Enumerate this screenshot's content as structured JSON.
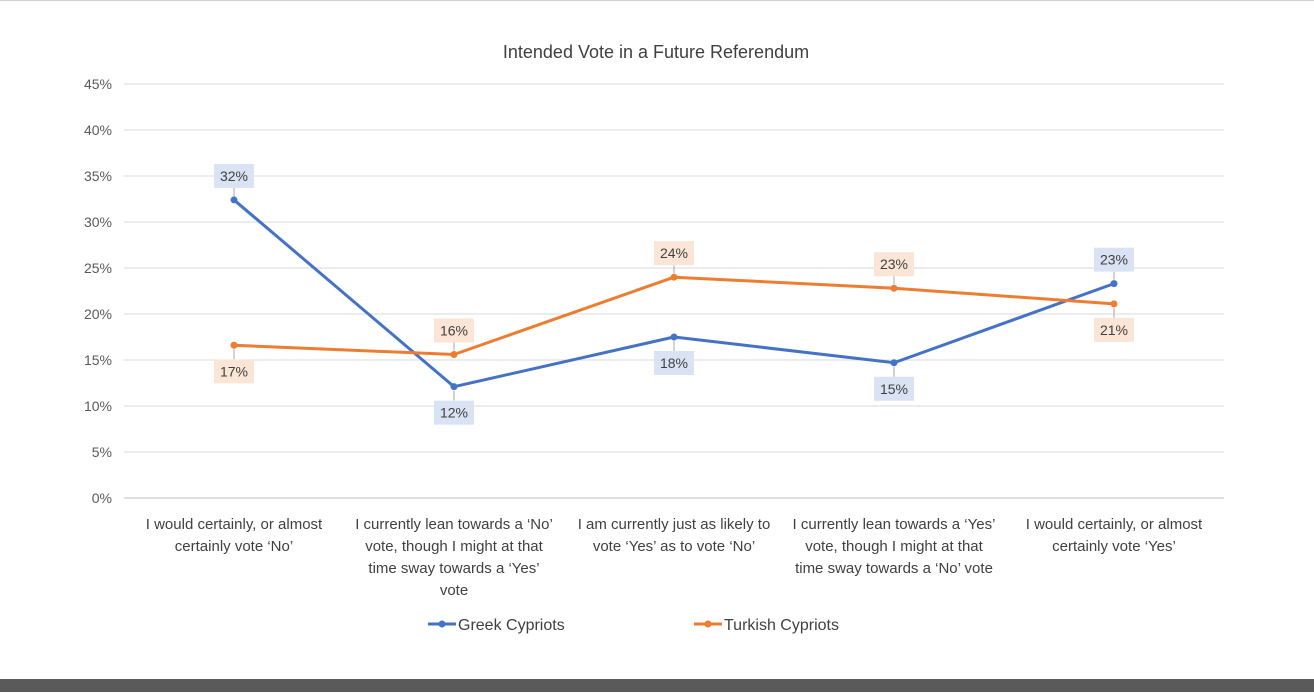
{
  "chart_data": {
    "type": "line",
    "title": "Intended Vote in a Future Referendum",
    "xlabel": "",
    "ylabel": "",
    "ylim": [
      0,
      45
    ],
    "yticks": [
      "0%",
      "5%",
      "10%",
      "15%",
      "20%",
      "25%",
      "30%",
      "35%",
      "40%",
      "45%"
    ],
    "ytick_values": [
      0,
      5,
      10,
      15,
      20,
      25,
      30,
      35,
      40,
      45
    ],
    "grid": true,
    "legend_position": "bottom",
    "categories": [
      [
        "I would certainly, or almost",
        "certainly vote ‘No’"
      ],
      [
        "I currently lean towards a ‘No’",
        "vote, though I might at that",
        "time sway towards a ‘Yes’",
        "vote"
      ],
      [
        "I am currently just as likely to",
        "vote ‘Yes’ as to vote ‘No’"
      ],
      [
        "I currently lean towards a ‘Yes’",
        "vote, though I might at that",
        "time sway towards a ‘No’ vote"
      ],
      [
        "I would certainly, or almost",
        "certainly vote ‘Yes’"
      ]
    ],
    "series": [
      {
        "name": "Greek Cypriots",
        "color": "#4472c4",
        "label_bg": "#dae3f3",
        "values": [
          32.4,
          12.1,
          17.5,
          14.7,
          23.3
        ],
        "labels": [
          "32%",
          "12%",
          "18%",
          "15%",
          "23%"
        ],
        "label_side": [
          "above",
          "below",
          "below",
          "below",
          "above"
        ]
      },
      {
        "name": "Turkish Cypriots",
        "color": "#ed7d31",
        "label_bg": "#fbe5d6",
        "values": [
          16.6,
          15.6,
          24.0,
          22.8,
          21.1
        ],
        "labels": [
          "17%",
          "16%",
          "24%",
          "23%",
          "21%"
        ],
        "label_side": [
          "below",
          "above",
          "above",
          "above",
          "below"
        ]
      }
    ]
  }
}
